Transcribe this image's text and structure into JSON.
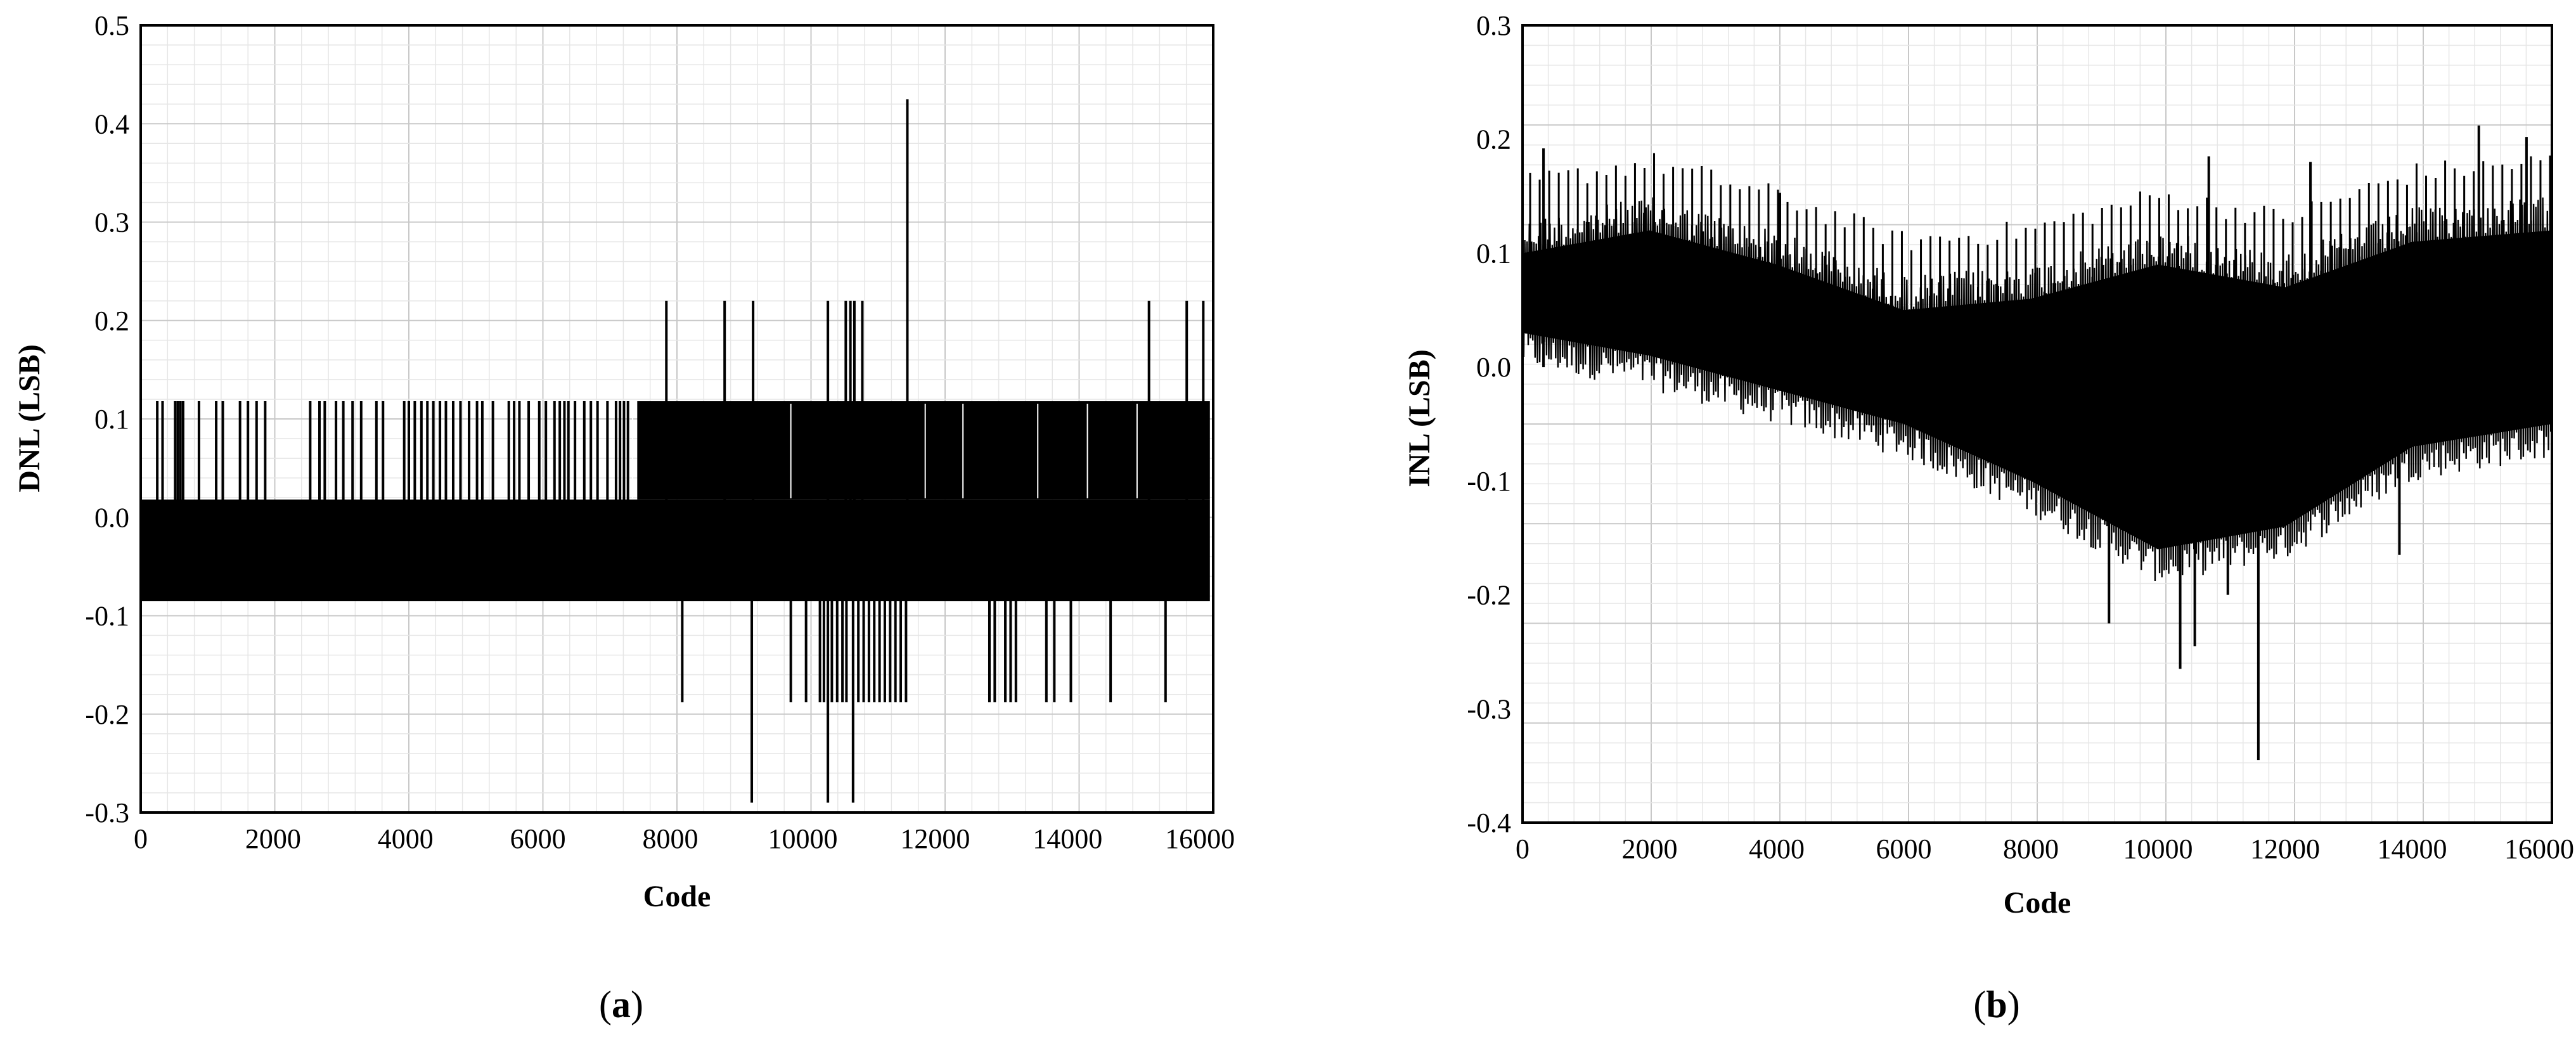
{
  "chart_data": [
    {
      "id": "a",
      "type": "line",
      "panel_label": "a",
      "xlabel": "Code",
      "ylabel": "DNL (LSB)",
      "xlim": [
        0,
        16200
      ],
      "ylim": [
        -0.3,
        0.5
      ],
      "xticks": [
        "0",
        "2000",
        "4000",
        "6000",
        "8000",
        "10000",
        "12000",
        "14000",
        "16000"
      ],
      "yticks": [
        "0.5",
        "0.4",
        "0.3",
        "0.2",
        "0.1",
        "0.0",
        "-0.1",
        "-0.2",
        "-0.3"
      ],
      "grid": true,
      "color": "#000000",
      "band": {
        "x": [
          0,
          16150
        ],
        "low": -0.085,
        "high": 0.018
      },
      "upper_band": {
        "x": [
          7500,
          16150
        ],
        "low": 0.018,
        "high": 0.118
      },
      "spikes": [
        {
          "x": 250,
          "y": 0.118
        },
        {
          "x": 330,
          "y": 0.118
        },
        {
          "x": 520,
          "y": 0.118
        },
        {
          "x": 560,
          "y": 0.118
        },
        {
          "x": 600,
          "y": 0.118
        },
        {
          "x": 640,
          "y": 0.118
        },
        {
          "x": 880,
          "y": 0.118
        },
        {
          "x": 1140,
          "y": 0.118
        },
        {
          "x": 1240,
          "y": 0.118
        },
        {
          "x": 1500,
          "y": 0.118
        },
        {
          "x": 1620,
          "y": 0.118
        },
        {
          "x": 1750,
          "y": 0.118
        },
        {
          "x": 1880,
          "y": 0.118
        },
        {
          "x": 2560,
          "y": 0.118
        },
        {
          "x": 2700,
          "y": 0.118
        },
        {
          "x": 2780,
          "y": 0.118
        },
        {
          "x": 2950,
          "y": 0.118
        },
        {
          "x": 3060,
          "y": 0.118
        },
        {
          "x": 3200,
          "y": 0.118
        },
        {
          "x": 3330,
          "y": 0.118
        },
        {
          "x": 3560,
          "y": 0.118
        },
        {
          "x": 3660,
          "y": 0.118
        },
        {
          "x": 3980,
          "y": 0.118
        },
        {
          "x": 4050,
          "y": 0.118
        },
        {
          "x": 4140,
          "y": 0.118
        },
        {
          "x": 4240,
          "y": 0.118
        },
        {
          "x": 4330,
          "y": 0.118
        },
        {
          "x": 4420,
          "y": 0.118
        },
        {
          "x": 4520,
          "y": 0.118
        },
        {
          "x": 4610,
          "y": 0.118
        },
        {
          "x": 4720,
          "y": 0.118
        },
        {
          "x": 4830,
          "y": 0.118
        },
        {
          "x": 4960,
          "y": 0.118
        },
        {
          "x": 5080,
          "y": 0.118
        },
        {
          "x": 5160,
          "y": 0.118
        },
        {
          "x": 5320,
          "y": 0.118
        },
        {
          "x": 5560,
          "y": 0.118
        },
        {
          "x": 5640,
          "y": 0.118
        },
        {
          "x": 5720,
          "y": 0.118
        },
        {
          "x": 5860,
          "y": 0.118
        },
        {
          "x": 6020,
          "y": 0.118
        },
        {
          "x": 6120,
          "y": 0.118
        },
        {
          "x": 6250,
          "y": 0.118
        },
        {
          "x": 6330,
          "y": 0.118
        },
        {
          "x": 6400,
          "y": 0.118
        },
        {
          "x": 6460,
          "y": 0.118
        },
        {
          "x": 6560,
          "y": 0.118
        },
        {
          "x": 6700,
          "y": 0.118
        },
        {
          "x": 6800,
          "y": 0.118
        },
        {
          "x": 6900,
          "y": 0.118
        },
        {
          "x": 7050,
          "y": 0.118
        },
        {
          "x": 7180,
          "y": 0.118
        },
        {
          "x": 7240,
          "y": 0.118
        },
        {
          "x": 7300,
          "y": 0.118
        },
        {
          "x": 7360,
          "y": 0.118
        },
        {
          "x": 7940,
          "y": 0.22
        },
        {
          "x": 8820,
          "y": 0.22
        },
        {
          "x": 9250,
          "y": 0.22
        },
        {
          "x": 10380,
          "y": 0.22
        },
        {
          "x": 10650,
          "y": 0.22
        },
        {
          "x": 10720,
          "y": 0.22
        },
        {
          "x": 10780,
          "y": 0.22
        },
        {
          "x": 10900,
          "y": 0.22
        },
        {
          "x": 11580,
          "y": 0.425
        },
        {
          "x": 15230,
          "y": 0.22
        },
        {
          "x": 15800,
          "y": 0.22
        },
        {
          "x": 16050,
          "y": 0.22
        },
        {
          "x": 8180,
          "y": -0.188
        },
        {
          "x": 9230,
          "y": -0.29
        },
        {
          "x": 9820,
          "y": -0.188
        },
        {
          "x": 10050,
          "y": -0.188
        },
        {
          "x": 10260,
          "y": -0.188
        },
        {
          "x": 10320,
          "y": -0.188
        },
        {
          "x": 10380,
          "y": -0.29
        },
        {
          "x": 10440,
          "y": -0.188
        },
        {
          "x": 10520,
          "y": -0.188
        },
        {
          "x": 10600,
          "y": -0.188
        },
        {
          "x": 10660,
          "y": -0.188
        },
        {
          "x": 10760,
          "y": -0.29
        },
        {
          "x": 10840,
          "y": -0.188
        },
        {
          "x": 10920,
          "y": -0.188
        },
        {
          "x": 11000,
          "y": -0.188
        },
        {
          "x": 11080,
          "y": -0.188
        },
        {
          "x": 11160,
          "y": -0.188
        },
        {
          "x": 11240,
          "y": -0.188
        },
        {
          "x": 11320,
          "y": -0.188
        },
        {
          "x": 11400,
          "y": -0.188
        },
        {
          "x": 11480,
          "y": -0.188
        },
        {
          "x": 11560,
          "y": -0.188
        },
        {
          "x": 12820,
          "y": -0.188
        },
        {
          "x": 12900,
          "y": -0.188
        },
        {
          "x": 13060,
          "y": -0.188
        },
        {
          "x": 13140,
          "y": -0.188
        },
        {
          "x": 13220,
          "y": -0.188
        },
        {
          "x": 13680,
          "y": -0.188
        },
        {
          "x": 13800,
          "y": -0.188
        },
        {
          "x": 14050,
          "y": -0.188
        },
        {
          "x": 14650,
          "y": -0.188
        },
        {
          "x": 15480,
          "y": -0.188
        }
      ]
    },
    {
      "id": "b",
      "type": "line",
      "panel_label": "b",
      "xlabel": "Code",
      "ylabel": "INL (LSB)",
      "xlim": [
        0,
        16200
      ],
      "ylim": [
        -0.4,
        0.3
      ],
      "xticks": [
        "0",
        "2000",
        "4000",
        "6000",
        "8000",
        "10000",
        "12000",
        "14000",
        "16000"
      ],
      "yticks": [
        "0.3",
        "0.2",
        "0.1",
        "0.0",
        "-0.1",
        "-0.2",
        "-0.3",
        "-0.4"
      ],
      "grid": true,
      "color": "#000000",
      "envelope": {
        "x": [
          0,
          2000,
          4000,
          6000,
          8000,
          10000,
          12000,
          14000,
          16200
        ],
        "upper": [
          0.13,
          0.15,
          0.12,
          0.08,
          0.09,
          0.12,
          0.1,
          0.14,
          0.15
        ],
        "lower": [
          0.0,
          -0.02,
          -0.05,
          -0.08,
          -0.13,
          -0.19,
          -0.17,
          -0.1,
          -0.08
        ]
      },
      "peaks": [
        {
          "x": 330,
          "y": 0.192
        },
        {
          "x": 10800,
          "y": 0.185
        },
        {
          "x": 12400,
          "y": 0.18
        },
        {
          "x": 15050,
          "y": 0.212
        },
        {
          "x": 15800,
          "y": 0.202
        },
        {
          "x": 4050,
          "y": 0.153
        }
      ],
      "troughs": [
        {
          "x": 9230,
          "y": -0.225
        },
        {
          "x": 10350,
          "y": -0.265
        },
        {
          "x": 10580,
          "y": -0.245
        },
        {
          "x": 11580,
          "y": -0.345
        },
        {
          "x": 13800,
          "y": -0.165
        },
        {
          "x": 11100,
          "y": -0.2
        }
      ]
    }
  ]
}
